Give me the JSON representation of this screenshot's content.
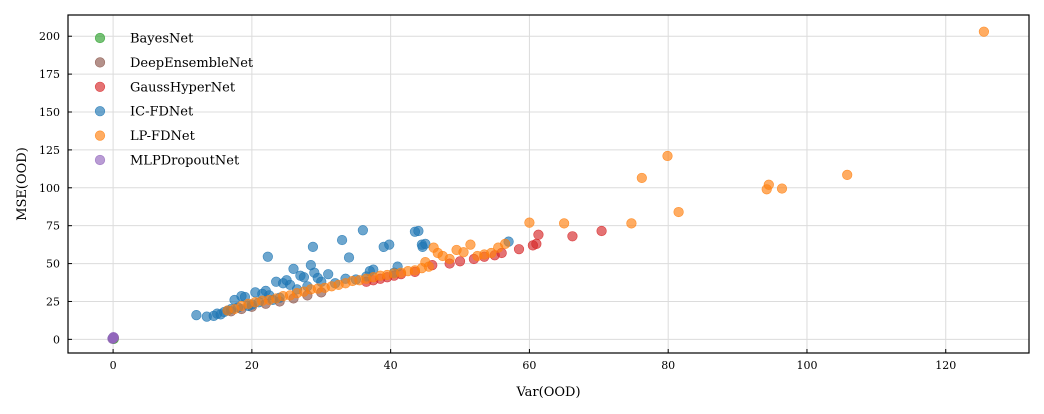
{
  "chart_data": {
    "type": "scatter",
    "xlabel": "Var(OOD)",
    "ylabel": "MSE(OOD)",
    "xlim": [
      -6.5,
      132
    ],
    "ylim": [
      -9,
      214
    ],
    "xticks": [
      0,
      20,
      40,
      60,
      80,
      100,
      120
    ],
    "yticks": [
      0,
      25,
      50,
      75,
      100,
      125,
      150,
      175,
      200
    ],
    "grid": true,
    "legend_position": "top-left",
    "series": [
      {
        "name": "BayesNet",
        "color": "#2ca02c",
        "x": [
          0.0,
          0.05,
          0.1,
          -0.05
        ],
        "y": [
          0.5,
          1.0,
          0.3,
          0.8
        ]
      },
      {
        "name": "DeepEnsembleNet",
        "color": "#8c564b",
        "x": [
          0.0,
          0.1,
          17.0,
          18.5,
          20.0,
          22.0,
          24.0,
          26.0,
          28.0,
          30.0
        ],
        "y": [
          0.6,
          1.1,
          18.5,
          20.0,
          21.5,
          23.5,
          25.0,
          27.0,
          29.0,
          31.0
        ]
      },
      {
        "name": "GaussHyperNet",
        "color": "#d62728",
        "x": [
          0.0,
          36.5,
          37.5,
          38.5,
          39.5,
          40.5,
          41.5,
          43.5,
          46.0,
          48.5,
          50.0,
          52.0,
          53.5,
          55.0,
          56.0,
          58.5,
          60.5,
          61.0,
          61.3,
          66.2,
          70.4
        ],
        "y": [
          0.7,
          38.0,
          39.0,
          40.0,
          41.0,
          42.0,
          43.0,
          44.5,
          49.0,
          50.0,
          51.5,
          53.0,
          54.5,
          55.5,
          57.0,
          59.5,
          62.0,
          63.0,
          69.0,
          68.0,
          71.5
        ]
      },
      {
        "name": "IC-FDNet",
        "color": "#1f77b4",
        "x": [
          0.0,
          12.0,
          13.5,
          14.5,
          15.0,
          15.5,
          16.0,
          16.5,
          17.0,
          17.5,
          18.0,
          18.5,
          19.0,
          19.5,
          20.0,
          20.5,
          21.0,
          21.5,
          22.0,
          22.3,
          22.5,
          23.0,
          23.5,
          24.0,
          24.5,
          25.0,
          25.5,
          26.0,
          26.5,
          27.0,
          27.5,
          28.0,
          28.5,
          28.8,
          29.0,
          29.5,
          30.0,
          31.0,
          32.0,
          33.0,
          33.5,
          34.0,
          35.0,
          36.0,
          36.5,
          37.0,
          37.5,
          39.0,
          39.8,
          40.5,
          41.0,
          43.5,
          44.0,
          44.5,
          44.6,
          45.0,
          57.0
        ],
        "y": [
          0.9,
          16.0,
          15.0,
          15.5,
          17.0,
          16.5,
          18.0,
          19.0,
          20.0,
          26.0,
          21.0,
          28.5,
          28.0,
          22.0,
          23.0,
          31.0,
          24.5,
          30.0,
          32.0,
          54.5,
          29.0,
          26.0,
          38.0,
          27.5,
          37.0,
          39.0,
          36.0,
          46.5,
          33.0,
          42.0,
          41.0,
          35.0,
          49.0,
          61.0,
          44.0,
          40.5,
          38.0,
          43.0,
          37.0,
          65.5,
          40.0,
          54.0,
          39.5,
          72.0,
          41.5,
          45.0,
          46.0,
          61.0,
          62.5,
          44.0,
          48.0,
          71.0,
          71.5,
          62.5,
          61.0,
          63.0,
          64.5
        ]
      },
      {
        "name": "LP-FDNet",
        "color": "#ff7f0e",
        "x": [
          16.5,
          17.5,
          18.5,
          19.5,
          20.5,
          21.5,
          22.5,
          23.5,
          24.5,
          25.5,
          26.5,
          27.5,
          28.5,
          29.5,
          30.5,
          31.5,
          32.5,
          33.5,
          34.5,
          35.5,
          36.5,
          37.5,
          38.5,
          39.5,
          40.5,
          41.5,
          42.5,
          43.5,
          44.5,
          45.0,
          45.5,
          46.2,
          46.8,
          47.5,
          48.5,
          49.5,
          50.5,
          51.5,
          52.5,
          53.5,
          54.5,
          55.5,
          56.5,
          60.0,
          65.0,
          74.7,
          76.2,
          79.9,
          81.5,
          94.2,
          94.5,
          96.4,
          105.8,
          125.5
        ],
        "y": [
          19.0,
          20.0,
          22.0,
          23.5,
          24.5,
          25.5,
          26.0,
          27.0,
          28.5,
          29.0,
          30.5,
          31.5,
          33.0,
          33.5,
          34.0,
          35.0,
          36.0,
          37.0,
          38.5,
          39.0,
          40.0,
          41.0,
          42.0,
          42.5,
          43.5,
          44.0,
          45.0,
          45.5,
          47.0,
          51.0,
          48.0,
          60.5,
          57.0,
          55.0,
          53.0,
          59.0,
          57.5,
          62.5,
          55.0,
          56.0,
          57.0,
          60.5,
          63.0,
          77.0,
          76.5,
          76.5,
          106.5,
          121.0,
          84.0,
          99.0,
          102.0,
          99.5,
          108.5,
          203.0
        ]
      },
      {
        "name": "MLPDropoutNet",
        "color": "#9467bd",
        "x": [
          0.0,
          0.1,
          -0.1,
          0.05
        ],
        "y": [
          0.8,
          1.2,
          0.4,
          1.5
        ]
      }
    ]
  }
}
